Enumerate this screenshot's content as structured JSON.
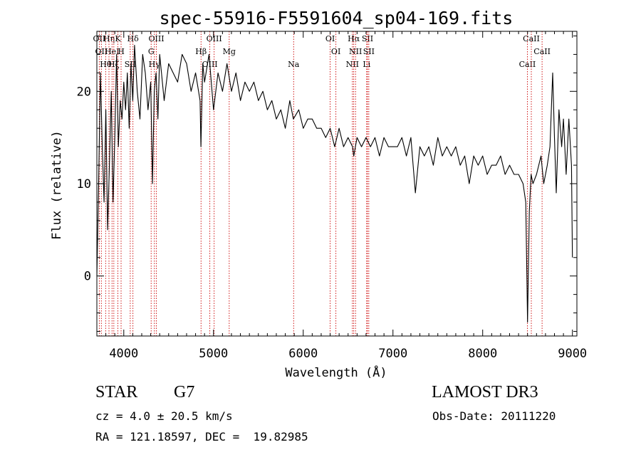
{
  "chart_data": {
    "type": "line",
    "title": "spec-55916-F5591604_sp04-169.fits",
    "xlabel": "Wavelength (Å)",
    "ylabel": "Flux (relative)",
    "xlim": [
      3700,
      9050
    ],
    "ylim": [
      -6.5,
      26.5
    ],
    "x_ticks": [
      4000,
      5000,
      6000,
      7000,
      8000,
      9000
    ],
    "x_tick_labels": [
      "4000",
      "5000",
      "6000",
      "7000",
      "8000",
      "9000"
    ],
    "y_ticks": [
      0,
      10,
      20
    ],
    "y_tick_labels": [
      "0",
      "10",
      "20"
    ],
    "grid": false,
    "line_color": "#000000",
    "marker_color": "#cc0000",
    "series": [
      {
        "name": "flux",
        "x": [
          3700,
          3720,
          3740,
          3760,
          3780,
          3800,
          3820,
          3840,
          3860,
          3880,
          3900,
          3920,
          3940,
          3960,
          3980,
          4000,
          4020,
          4040,
          4060,
          4080,
          4100,
          4120,
          4150,
          4180,
          4210,
          4240,
          4270,
          4300,
          4320,
          4340,
          4360,
          4380,
          4400,
          4450,
          4500,
          4550,
          4600,
          4650,
          4700,
          4750,
          4800,
          4850,
          4860,
          4880,
          4900,
          4950,
          5000,
          5050,
          5100,
          5150,
          5200,
          5250,
          5300,
          5350,
          5400,
          5450,
          5500,
          5550,
          5600,
          5650,
          5700,
          5750,
          5800,
          5850,
          5890,
          5950,
          6000,
          6050,
          6100,
          6150,
          6200,
          6250,
          6300,
          6350,
          6400,
          6450,
          6500,
          6550,
          6563,
          6600,
          6650,
          6700,
          6750,
          6800,
          6850,
          6900,
          6950,
          7000,
          7050,
          7100,
          7150,
          7200,
          7250,
          7300,
          7350,
          7400,
          7450,
          7500,
          7550,
          7600,
          7650,
          7700,
          7750,
          7800,
          7850,
          7900,
          7950,
          8000,
          8050,
          8100,
          8150,
          8200,
          8250,
          8300,
          8350,
          8400,
          8450,
          8480,
          8500,
          8520,
          8540,
          8560,
          8600,
          8650,
          8680,
          8700,
          8720,
          8750,
          8780,
          8800,
          8820,
          8850,
          8880,
          8900,
          8930,
          8960,
          8990,
          9000
        ],
        "values": [
          0,
          10,
          22,
          14,
          8,
          18,
          5,
          12,
          20,
          8,
          15,
          24,
          14,
          19,
          17,
          21,
          18,
          22,
          16,
          23,
          19,
          25,
          20,
          17,
          24,
          22,
          18,
          21,
          10,
          20,
          22,
          17,
          24,
          19,
          23,
          22,
          21,
          24,
          23,
          20,
          22,
          19,
          14,
          23,
          21,
          24,
          18,
          22,
          20,
          23,
          20,
          22,
          19,
          21,
          20,
          21,
          19,
          20,
          18,
          19,
          17,
          18,
          16,
          19,
          17,
          18,
          16,
          17,
          17,
          16,
          16,
          15,
          16,
          14,
          16,
          14,
          15,
          14,
          13,
          15,
          14,
          15,
          14,
          15,
          13,
          15,
          14,
          14,
          14,
          15,
          13,
          15,
          9,
          14,
          13,
          14,
          12,
          15,
          13,
          14,
          13,
          14,
          12,
          13,
          10,
          13,
          12,
          13,
          11,
          12,
          12,
          13,
          11,
          12,
          11,
          11,
          10,
          8,
          -5,
          7,
          11,
          10,
          11,
          13,
          10,
          11,
          12,
          14,
          22,
          15,
          9,
          18,
          14,
          17,
          11,
          17,
          12,
          2
        ]
      }
    ],
    "line_markers": [
      {
        "wavelength": 3727,
        "label": "OII"
      },
      {
        "wavelength": 3750,
        "label": "OII"
      },
      {
        "wavelength": 3798,
        "label": "Hθ"
      },
      {
        "wavelength": 3835,
        "label": "Hη"
      },
      {
        "wavelength": 3869,
        "label": "HeI"
      },
      {
        "wavelength": 3889,
        "label": "Hζ"
      },
      {
        "wavelength": 3934,
        "label": "K"
      },
      {
        "wavelength": 3970,
        "label": "H"
      },
      {
        "wavelength": 4072,
        "label": "SII"
      },
      {
        "wavelength": 4102,
        "label": "Hδ"
      },
      {
        "wavelength": 4305,
        "label": "G"
      },
      {
        "wavelength": 4341,
        "label": "Hγ"
      },
      {
        "wavelength": 4363,
        "label": "OIII"
      },
      {
        "wavelength": 4861,
        "label": "Hβ"
      },
      {
        "wavelength": 4959,
        "label": "OIII"
      },
      {
        "wavelength": 5007,
        "label": "OIII"
      },
      {
        "wavelength": 5175,
        "label": "Mg"
      },
      {
        "wavelength": 5893,
        "label": "Na"
      },
      {
        "wavelength": 6300,
        "label": "OI"
      },
      {
        "wavelength": 6364,
        "label": "OI"
      },
      {
        "wavelength": 6548,
        "label": "NII"
      },
      {
        "wavelength": 6563,
        "label": "Hα"
      },
      {
        "wavelength": 6583,
        "label": "NII"
      },
      {
        "wavelength": 6707,
        "label": "Li"
      },
      {
        "wavelength": 6716,
        "label": "SII"
      },
      {
        "wavelength": 6731,
        "label": "SII"
      },
      {
        "wavelength": 8498,
        "label": "CaII"
      },
      {
        "wavelength": 8542,
        "label": "CaII"
      },
      {
        "wavelength": 8662,
        "label": "CaII"
      }
    ]
  },
  "info": {
    "object_class": "STAR",
    "subclass": "G7",
    "survey": "LAMOST DR3",
    "redshift": "cz = 4.0 ± 20.5 km/s",
    "obs_date": "Obs-Date: 20111220",
    "coords": "RA = 121.18597, DEC =  19.82985"
  }
}
